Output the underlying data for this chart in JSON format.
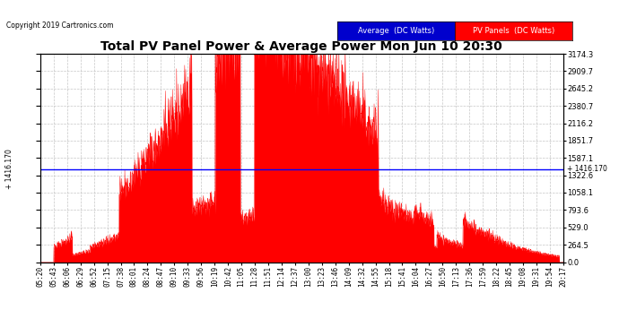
{
  "title": "Total PV Panel Power & Average Power Mon Jun 10 20:30",
  "copyright": "Copyright 2019 Cartronics.com",
  "avg_label": "Average  (DC Watts)",
  "pv_label": "PV Panels  (DC Watts)",
  "avg_value": 1416.17,
  "y_max": 3174.3,
  "y_ticks": [
    0.0,
    264.5,
    529.0,
    793.6,
    1058.1,
    1322.6,
    1587.1,
    1851.7,
    2116.2,
    2380.7,
    2645.2,
    2909.7,
    3174.3
  ],
  "y_tick_labels": [
    "0.0",
    "264.5",
    "529.0",
    "793.6",
    "1058.1",
    "1322.6",
    "1587.1",
    "1851.7",
    "2116.2",
    "2380.7",
    "2645.2",
    "2909.7",
    "3174.3"
  ],
  "x_tick_labels": [
    "05:20",
    "05:43",
    "06:06",
    "06:29",
    "06:52",
    "07:15",
    "07:38",
    "08:01",
    "08:24",
    "08:47",
    "09:10",
    "09:33",
    "09:56",
    "10:19",
    "10:42",
    "11:05",
    "11:28",
    "11:51",
    "12:14",
    "12:37",
    "13:00",
    "13:23",
    "13:46",
    "14:09",
    "14:32",
    "14:55",
    "15:18",
    "15:41",
    "16:04",
    "16:27",
    "16:50",
    "17:13",
    "17:36",
    "17:59",
    "18:22",
    "18:45",
    "19:08",
    "19:31",
    "19:54",
    "20:17"
  ],
  "bg_color": "#ffffff",
  "plot_bg_color": "#ffffff",
  "grid_color": "#c0c0c0",
  "fill_color": "#ff0000",
  "line_color": "#ff0000",
  "avg_line_color": "#0000ff",
  "title_color": "#000000",
  "avg_legend_bg": "#0000cd",
  "pv_legend_bg": "#ff0000"
}
